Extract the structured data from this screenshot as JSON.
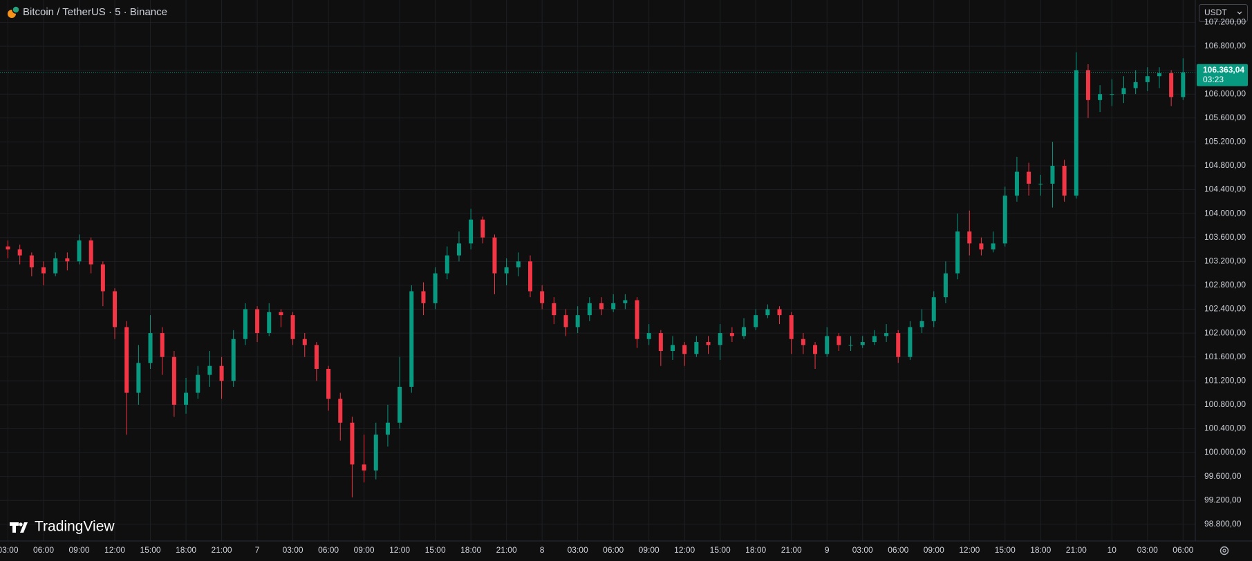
{
  "chart_data": {
    "type": "candlestick",
    "title": "Bitcoin / TetherUS · 5 · Binance",
    "currency": "USDT",
    "brand": "TradingView",
    "last_price": {
      "value": 106363.04,
      "label": "106.363,04"
    },
    "countdown": "03:23",
    "up_color": "#089981",
    "down_color": "#f23645",
    "grid": true,
    "x": [
      3,
      4,
      5,
      6,
      7,
      8,
      9,
      10,
      11,
      12,
      13,
      14,
      15,
      16,
      17,
      18,
      19,
      20,
      21,
      22,
      23,
      24,
      25,
      26,
      27,
      28,
      29,
      30,
      31,
      32,
      33,
      34,
      35,
      36,
      37,
      38,
      39,
      40,
      41,
      42,
      43,
      44,
      45,
      46,
      47,
      48,
      49,
      50,
      51,
      52,
      53,
      54,
      55,
      56,
      57,
      58,
      59,
      60,
      61,
      62,
      63,
      64,
      65,
      66,
      67,
      68,
      69,
      70,
      71,
      72,
      73,
      74,
      75,
      76,
      77,
      78,
      79,
      80,
      81,
      82,
      83,
      84,
      85,
      86,
      87,
      88,
      89,
      90,
      91,
      92,
      93,
      94,
      95,
      96,
      97,
      98,
      99,
      100,
      101,
      102
    ],
    "open": [
      103450,
      103400,
      103300,
      103100,
      103000,
      103250,
      103200,
      103550,
      103150,
      102700,
      102100,
      101000,
      101500,
      102000,
      101600,
      100800,
      101000,
      101300,
      101450,
      101200,
      101900,
      102400,
      102000,
      102350,
      102300,
      101900,
      101800,
      101400,
      100900,
      100500,
      99800,
      99700,
      100300,
      100500,
      101100,
      102700,
      102500,
      103000,
      103300,
      103500,
      103900,
      103600,
      103000,
      103100,
      103200,
      102700,
      102500,
      102300,
      102100,
      102300,
      102500,
      102400,
      102500,
      102550,
      101900,
      102000,
      101700,
      101800,
      101650,
      101850,
      101800,
      102000,
      101950,
      102100,
      102300,
      102400,
      102300,
      101900,
      101800,
      101650,
      101950,
      101800,
      101800,
      101850,
      101950,
      102000,
      101600,
      102100,
      102200,
      102600,
      103000,
      103700,
      103500,
      103400,
      103500,
      104300,
      104700,
      104500,
      104500,
      104800,
      104300,
      106400,
      105900,
      106000,
      106000,
      106100,
      106200,
      106300,
      106350,
      105950
    ],
    "high": [
      103550,
      103480,
      103350,
      103200,
      103350,
      103350,
      103650,
      103600,
      103200,
      102750,
      102200,
      101800,
      102300,
      102100,
      101700,
      101250,
      101450,
      101700,
      101600,
      102050,
      102500,
      102450,
      102500,
      102400,
      102350,
      102000,
      101850,
      101450,
      101000,
      100600,
      100300,
      100500,
      100800,
      101600,
      102800,
      102850,
      103100,
      103450,
      103700,
      104080,
      103950,
      103650,
      103250,
      103350,
      103300,
      102800,
      102600,
      102400,
      102450,
      102600,
      102600,
      102650,
      102650,
      102600,
      102150,
      102050,
      101950,
      101850,
      101950,
      101950,
      102150,
      102100,
      102250,
      102400,
      102480,
      102450,
      102350,
      102000,
      101850,
      102100,
      102000,
      101950,
      101950,
      102050,
      102150,
      102050,
      102200,
      102400,
      102700,
      103200,
      104000,
      104050,
      103600,
      103700,
      104450,
      104950,
      104850,
      104650,
      105200,
      104900,
      106700,
      106500,
      106150,
      106250,
      106300,
      106400,
      106450,
      106450,
      106400,
      106600
    ],
    "low": [
      103250,
      103150,
      102950,
      102800,
      102950,
      103050,
      103150,
      103000,
      102450,
      101900,
      100300,
      100800,
      101400,
      101300,
      100600,
      100650,
      100900,
      101100,
      100900,
      101100,
      101800,
      101850,
      101950,
      102100,
      101800,
      101600,
      101200,
      100700,
      100200,
      99250,
      99500,
      99550,
      100100,
      100400,
      101000,
      102300,
      102400,
      102900,
      103200,
      103400,
      103500,
      102650,
      102800,
      102950,
      102600,
      102400,
      102150,
      101950,
      102000,
      102200,
      102300,
      102350,
      102400,
      101750,
      101800,
      101450,
      101550,
      101450,
      101600,
      101650,
      101550,
      101850,
      101900,
      102050,
      102250,
      102150,
      101650,
      101650,
      101400,
      101600,
      101700,
      101700,
      101750,
      101800,
      101850,
      101500,
      101550,
      102000,
      102100,
      102500,
      102900,
      103300,
      103300,
      103350,
      103450,
      104200,
      104300,
      104300,
      104100,
      104200,
      104250,
      105600,
      105700,
      105800,
      105850,
      106000,
      106050,
      106100,
      105800,
      105900
    ],
    "close": [
      103400,
      103300,
      103100,
      103000,
      103250,
      103200,
      103550,
      103150,
      102700,
      102100,
      101000,
      101500,
      102000,
      101600,
      100800,
      101000,
      101300,
      101450,
      101200,
      101900,
      102400,
      102000,
      102350,
      102300,
      101900,
      101800,
      101400,
      100900,
      100500,
      99800,
      99700,
      100300,
      100500,
      101100,
      102700,
      102500,
      103000,
      103300,
      103500,
      103900,
      103600,
      103000,
      103100,
      103200,
      102700,
      102500,
      102300,
      102100,
      102300,
      102500,
      102400,
      102500,
      102550,
      101900,
      102000,
      101700,
      101800,
      101650,
      101850,
      101800,
      102000,
      101950,
      102100,
      102300,
      102400,
      102300,
      101900,
      101800,
      101650,
      101950,
      101800,
      101800,
      101850,
      101950,
      102000,
      101600,
      102100,
      102200,
      102600,
      103000,
      103700,
      103500,
      103400,
      103500,
      104300,
      104700,
      104500,
      104500,
      104800,
      104300,
      106400,
      105900,
      106000,
      106000,
      106100,
      106200,
      106300,
      106350,
      105950,
      106363.04
    ],
    "xlim": [
      2.33,
      103.03
    ],
    "xticks": [
      {
        "value": 3,
        "label": "03:00"
      },
      {
        "value": 6,
        "label": "06:00"
      },
      {
        "value": 9,
        "label": "09:00"
      },
      {
        "value": 12,
        "label": "12:00"
      },
      {
        "value": 15,
        "label": "15:00"
      },
      {
        "value": 18,
        "label": "18:00"
      },
      {
        "value": 21,
        "label": "21:00"
      },
      {
        "value": 24,
        "label": "7"
      },
      {
        "value": 27,
        "label": "03:00"
      },
      {
        "value": 30,
        "label": "06:00"
      },
      {
        "value": 33,
        "label": "09:00"
      },
      {
        "value": 36,
        "label": "12:00"
      },
      {
        "value": 39,
        "label": "15:00"
      },
      {
        "value": 42,
        "label": "18:00"
      },
      {
        "value": 45,
        "label": "21:00"
      },
      {
        "value": 48,
        "label": "8"
      },
      {
        "value": 51,
        "label": "03:00"
      },
      {
        "value": 54,
        "label": "06:00"
      },
      {
        "value": 57,
        "label": "09:00"
      },
      {
        "value": 60,
        "label": "12:00"
      },
      {
        "value": 63,
        "label": "15:00"
      },
      {
        "value": 66,
        "label": "18:00"
      },
      {
        "value": 69,
        "label": "21:00"
      },
      {
        "value": 72,
        "label": "9"
      },
      {
        "value": 75,
        "label": "03:00"
      },
      {
        "value": 78,
        "label": "06:00"
      },
      {
        "value": 81,
        "label": "09:00"
      },
      {
        "value": 84,
        "label": "12:00"
      },
      {
        "value": 87,
        "label": "15:00"
      },
      {
        "value": 90,
        "label": "18:00"
      },
      {
        "value": 93,
        "label": "21:00"
      },
      {
        "value": 96,
        "label": "10"
      },
      {
        "value": 99,
        "label": "03:00"
      },
      {
        "value": 102,
        "label": "06:00"
      }
    ],
    "ylim": [
      98520,
      107575
    ],
    "yticks": [
      {
        "value": 98800,
        "label": "98.800,00"
      },
      {
        "value": 99200,
        "label": "99.200,00"
      },
      {
        "value": 99600,
        "label": "99.600,00"
      },
      {
        "value": 100000,
        "label": "100.000,00"
      },
      {
        "value": 100400,
        "label": "100.400,00"
      },
      {
        "value": 100800,
        "label": "100.800,00"
      },
      {
        "value": 101200,
        "label": "101.200,00"
      },
      {
        "value": 101600,
        "label": "101.600,00"
      },
      {
        "value": 102000,
        "label": "102.000,00"
      },
      {
        "value": 102400,
        "label": "102.400,00"
      },
      {
        "value": 102800,
        "label": "102.800,00"
      },
      {
        "value": 103200,
        "label": "103.200,00"
      },
      {
        "value": 103600,
        "label": "103.600,00"
      },
      {
        "value": 104000,
        "label": "104.000,00"
      },
      {
        "value": 104400,
        "label": "104.400,00"
      },
      {
        "value": 104800,
        "label": "104.800,00"
      },
      {
        "value": 105200,
        "label": "105.200,00"
      },
      {
        "value": 105600,
        "label": "105.600,00"
      },
      {
        "value": 106000,
        "label": "106.000,00"
      },
      {
        "value": 106400,
        "label": "106.400,00"
      },
      {
        "value": 106800,
        "label": "106.800,00"
      },
      {
        "value": 107200,
        "label": "107.200,00"
      }
    ]
  }
}
